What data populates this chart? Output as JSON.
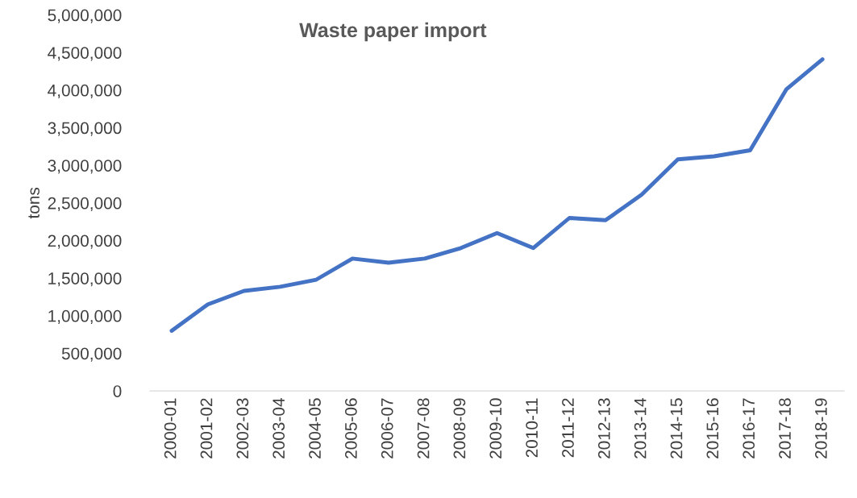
{
  "chart_data": {
    "type": "line",
    "title": "Waste paper import",
    "ylabel": "tons",
    "categories": [
      "2000-01",
      "2001-02",
      "2002-03",
      "2003-04",
      "2004-05",
      "2005-06",
      "2006-07",
      "2007-08",
      "2008-09",
      "2009-10",
      "2010-11",
      "2011-12",
      "2012-13",
      "2013-14",
      "2014-15",
      "2015-16",
      "2016-17",
      "2017-18",
      "2018-19"
    ],
    "series": [
      {
        "color": "#4472c4",
        "values": [
          800000,
          1150000,
          1330000,
          1385000,
          1480000,
          1760000,
          1705000,
          1760000,
          1900000,
          2100000,
          1900000,
          2300000,
          2270000,
          2610000,
          3080000,
          3120000,
          3200000,
          4010000,
          4410000
        ]
      }
    ],
    "ylim": [
      0,
      5000000
    ],
    "yticks": [
      {
        "value": 0,
        "label": "0"
      },
      {
        "value": 500000,
        "label": "500,000"
      },
      {
        "value": 1000000,
        "label": "1,000,000"
      },
      {
        "value": 1500000,
        "label": "1,500,000"
      },
      {
        "value": 2000000,
        "label": "2,000,000"
      },
      {
        "value": 2500000,
        "label": "2,500,000"
      },
      {
        "value": 3000000,
        "label": "3,000,000"
      },
      {
        "value": 3500000,
        "label": "3,500,000"
      },
      {
        "value": 4000000,
        "label": "4,000,000"
      },
      {
        "value": 4500000,
        "label": "4,500,000"
      },
      {
        "value": 5000000,
        "label": "5,000,000"
      }
    ],
    "grid": false,
    "legend": false,
    "marker": "none",
    "line_style": "solid"
  }
}
